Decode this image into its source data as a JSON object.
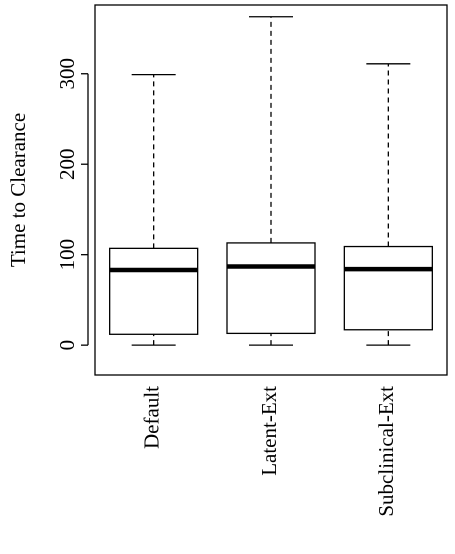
{
  "chart_data": {
    "type": "box",
    "y_label": "Time to Clearance",
    "categories": [
      "Default",
      "Latent-Ext",
      "Subclinical-Ext"
    ],
    "min": [
      0,
      0,
      0
    ],
    "q1": [
      12,
      13,
      17
    ],
    "median": [
      83,
      87,
      84
    ],
    "q3": [
      107,
      113,
      109
    ],
    "max": [
      299,
      363,
      311
    ],
    "ylim": [
      -33,
      376
    ],
    "yticks": [
      0,
      100,
      200,
      300
    ]
  }
}
